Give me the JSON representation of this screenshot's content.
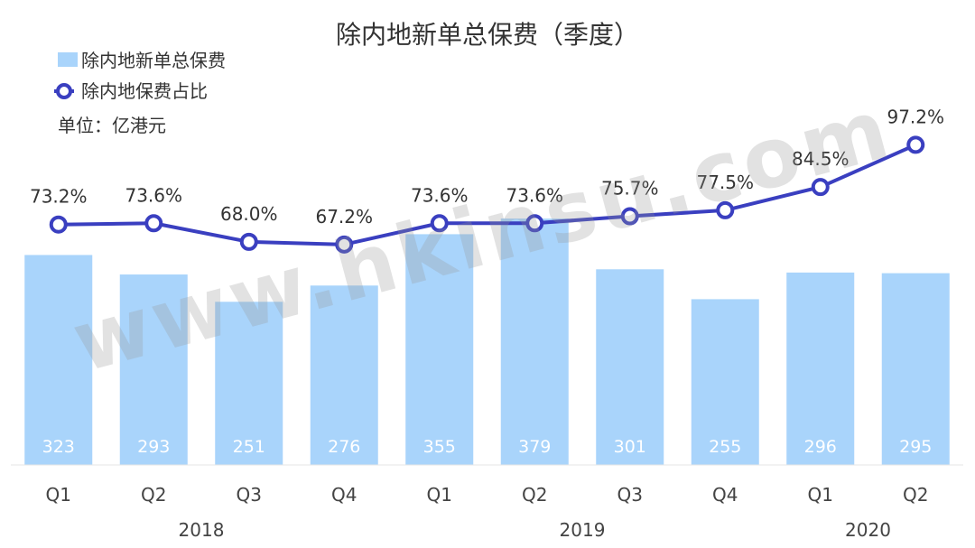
{
  "chart_data": {
    "type": "bar+line",
    "title": "除内地新单总保费（季度）",
    "unit_label": "单位：亿港元",
    "categories": [
      "Q1",
      "Q2",
      "Q3",
      "Q4",
      "Q1",
      "Q2",
      "Q3",
      "Q4",
      "Q1",
      "Q2"
    ],
    "year_groups": [
      {
        "label": "2018",
        "quarters": 4
      },
      {
        "label": "2019",
        "quarters": 4
      },
      {
        "label": "2020",
        "quarters": 2
      }
    ],
    "series": [
      {
        "name": "除内地新单总保费",
        "type": "bar",
        "color": "#a9d4fb",
        "values": [
          323,
          293,
          251,
          276,
          355,
          379,
          301,
          255,
          296,
          295
        ]
      },
      {
        "name": "除内地保费占比",
        "type": "line",
        "color": "#3a3fc0",
        "values": [
          73.2,
          73.6,
          68.0,
          67.2,
          73.6,
          73.6,
          75.7,
          77.5,
          84.5,
          97.2
        ],
        "labels": [
          "73.2%",
          "73.6%",
          "68.0%",
          "67.2%",
          "73.6%",
          "73.6%",
          "75.7%",
          "77.5%",
          "84.5%",
          "97.2%"
        ]
      }
    ],
    "watermark": "www.hkinsu.com",
    "grid": false,
    "legend_position": "top-left"
  }
}
